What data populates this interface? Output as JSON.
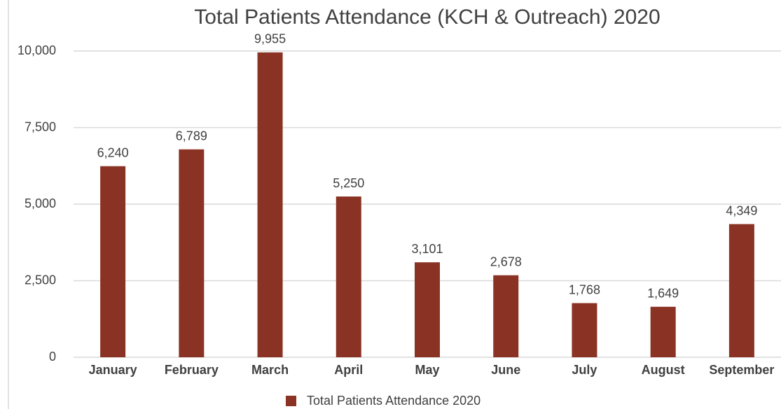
{
  "chart_data": {
    "type": "bar",
    "title": "Total Patients Attendance (KCH & Outreach) 2020",
    "categories": [
      "January",
      "February",
      "March",
      "April",
      "May",
      "June",
      "July",
      "August",
      "September"
    ],
    "series": [
      {
        "name": "Total Patients Attendance 2020",
        "color": "#8a3324",
        "values": [
          6240,
          6789,
          9955,
          5250,
          3101,
          2678,
          1768,
          1649,
          4349
        ],
        "value_labels": [
          "6,240",
          "6,789",
          "9,955",
          "5,250",
          "3,101",
          "2,678",
          "1,768",
          "1,649",
          "4,349"
        ]
      }
    ],
    "ylim": [
      0,
      10000
    ],
    "yticks": [
      0,
      {
        "value": 2500,
        "label": "2,500"
      },
      {
        "value": 5000,
        "label": "5,000"
      },
      {
        "value": 7500,
        "label": "7,500"
      },
      {
        "value": 10000,
        "label": "10,000"
      }
    ],
    "grid": true,
    "legend": "bottom"
  }
}
